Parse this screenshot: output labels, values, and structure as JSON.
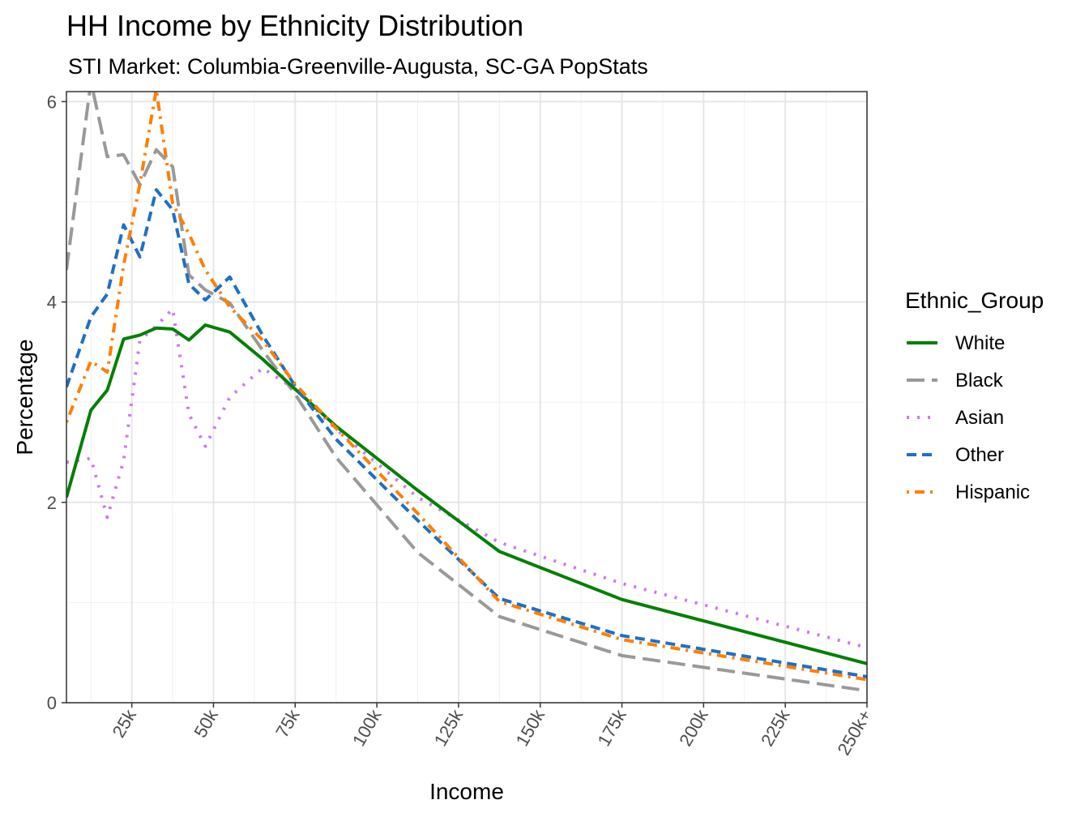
{
  "chart_data": {
    "type": "line",
    "title": "HH Income by Ethnicity Distribution",
    "subtitle": "STI Market: Columbia-Greenville-Augusta, SC-GA PopStats",
    "xlabel": "Income",
    "ylabel": "Percentage",
    "xlim": [
      5,
      250
    ],
    "ylim": [
      0,
      6.1
    ],
    "x_ticks": [
      {
        "value": 25,
        "label": "25k"
      },
      {
        "value": 50,
        "label": "50k"
      },
      {
        "value": 75,
        "label": "75k"
      },
      {
        "value": 100,
        "label": "100k"
      },
      {
        "value": 125,
        "label": "125k"
      },
      {
        "value": 150,
        "label": "150k"
      },
      {
        "value": 175,
        "label": "175k"
      },
      {
        "value": 200,
        "label": "200k"
      },
      {
        "value": 225,
        "label": "225k"
      },
      {
        "value": 250,
        "label": "250k+"
      }
    ],
    "y_ticks": [
      {
        "value": 0,
        "label": "0"
      },
      {
        "value": 2,
        "label": "2"
      },
      {
        "value": 4,
        "label": "4"
      },
      {
        "value": 6,
        "label": "6"
      }
    ],
    "grid": true,
    "legend": {
      "title": "Ethnic_Group",
      "position": "right"
    },
    "x": [
      5,
      12.5,
      17.5,
      22.5,
      27.5,
      32.5,
      37.5,
      42.5,
      47.5,
      55,
      65,
      75,
      87.5,
      112.5,
      137.5,
      175,
      250
    ],
    "series": [
      {
        "name": "White",
        "color": "#008000",
        "dash": "solid",
        "values": [
          2.05,
          2.92,
          3.12,
          3.63,
          3.67,
          3.74,
          3.73,
          3.62,
          3.77,
          3.7,
          3.43,
          3.13,
          2.76,
          2.12,
          1.51,
          1.03,
          0.39
        ]
      },
      {
        "name": "Black",
        "color": "#999999",
        "dash": "long",
        "values": [
          4.32,
          6.2,
          5.45,
          5.47,
          5.17,
          5.52,
          5.35,
          4.27,
          4.12,
          3.99,
          3.52,
          3.08,
          2.45,
          1.5,
          0.86,
          0.47,
          0.12
        ]
      },
      {
        "name": "Asian",
        "color": "#CC79F0",
        "dash": "dotted",
        "values": [
          2.4,
          2.44,
          1.85,
          2.42,
          3.62,
          3.76,
          3.93,
          2.88,
          2.56,
          3.05,
          3.34,
          3.13,
          2.73,
          2.05,
          1.6,
          1.19,
          0.55
        ]
      },
      {
        "name": "Other",
        "color": "#1F6FC5",
        "dash": "dashed",
        "values": [
          3.15,
          3.85,
          4.08,
          4.77,
          4.45,
          5.12,
          4.92,
          4.18,
          4.02,
          4.25,
          3.67,
          3.16,
          2.63,
          1.82,
          1.04,
          0.67,
          0.26
        ]
      },
      {
        "name": "Hispanic",
        "color": "#FF7F00",
        "dash": "dotdash",
        "values": [
          2.8,
          3.41,
          3.3,
          4.37,
          5.18,
          6.12,
          4.98,
          4.68,
          4.32,
          3.95,
          3.62,
          3.18,
          2.74,
          1.89,
          1.01,
          0.63,
          0.23
        ]
      }
    ]
  }
}
